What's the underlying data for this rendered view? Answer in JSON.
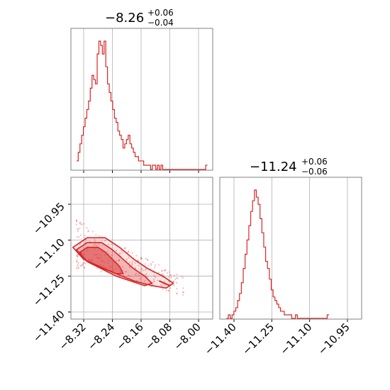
{
  "colors": {
    "accent": "#d62728",
    "grid": "#b0b0b0",
    "frame": "#808080"
  },
  "titles": {
    "p1": {
      "value": "−8.26",
      "upper": "+0.06",
      "lower": "−0.04"
    },
    "p2": {
      "value": "−11.24",
      "upper": "+0.06",
      "lower": "−0.06"
    }
  },
  "chart_data": [
    {
      "type": "histogram",
      "panel": "top-left",
      "parameter_index": 0,
      "xlim": [
        -8.35,
        -7.97
      ],
      "x_ticks": [
        -8.32,
        -8.24,
        -8.16,
        -8.08,
        -8.0
      ],
      "grid": true,
      "bin_edges_start": -8.34,
      "bin_width": 0.0048,
      "counts": [
        2,
        4,
        6,
        8,
        10,
        12,
        14,
        16,
        19,
        22,
        21,
        20,
        27,
        30,
        29,
        27,
        30,
        24,
        20,
        18,
        16,
        14,
        12,
        11,
        9,
        8,
        7,
        5,
        6,
        7,
        8,
        6,
        5,
        4,
        3,
        3,
        2,
        2,
        2,
        1,
        1,
        1,
        1,
        0,
        1,
        1,
        0,
        1,
        0,
        1,
        0,
        0,
        0,
        0,
        0,
        0,
        0,
        0,
        0,
        0,
        0,
        0,
        0,
        0,
        0,
        0,
        0,
        0,
        0,
        0,
        0,
        0,
        0,
        0,
        0,
        1
      ]
    },
    {
      "type": "histogram",
      "panel": "bottom-right",
      "parameter_index": 1,
      "xlim": [
        -11.45,
        -10.87
      ],
      "x_ticks": [
        -11.4,
        -11.25,
        -11.1,
        -10.95
      ],
      "grid": true,
      "bin_edges_start": -11.43,
      "bin_width": 0.0074,
      "counts": [
        0,
        1,
        0,
        1,
        2,
        3,
        5,
        7,
        10,
        14,
        18,
        22,
        26,
        30,
        33,
        36,
        34,
        32,
        28,
        24,
        20,
        16,
        14,
        11,
        8,
        6,
        5,
        4,
        3,
        2,
        2,
        1,
        1,
        1,
        1,
        0,
        0,
        1,
        0,
        0,
        0,
        0,
        0,
        0,
        0,
        0,
        0,
        0,
        0,
        0,
        0,
        0,
        0,
        0,
        1
      ]
    },
    {
      "type": "scatter",
      "panel": "bottom-left",
      "description_role": "2D joint posterior with contours",
      "xlim": [
        -8.35,
        -7.97
      ],
      "ylim": [
        -11.43,
        -10.87
      ],
      "x_ticks": [
        -8.32,
        -8.24,
        -8.16,
        -8.08,
        -8.0
      ],
      "y_ticks": [
        -10.95,
        -11.1,
        -11.25,
        -11.4
      ],
      "grid": true,
      "contours": [
        {
          "level": 0.39,
          "x": [
            -8.33,
            -8.31,
            -8.28,
            -8.26,
            -8.24,
            -8.22,
            -8.21,
            -8.23,
            -8.26,
            -8.29,
            -8.32,
            -8.33
          ],
          "y": [
            -11.15,
            -11.13,
            -11.13,
            -11.15,
            -11.18,
            -11.21,
            -11.24,
            -11.24,
            -11.22,
            -11.2,
            -11.18,
            -11.15
          ]
        },
        {
          "level": 0.86,
          "x": [
            -8.34,
            -8.31,
            -8.27,
            -8.24,
            -8.21,
            -8.18,
            -8.15,
            -8.13,
            -8.15,
            -8.19,
            -8.23,
            -8.27,
            -8.31,
            -8.34
          ],
          "y": [
            -11.14,
            -11.11,
            -11.11,
            -11.14,
            -11.18,
            -11.22,
            -11.25,
            -11.28,
            -11.29,
            -11.27,
            -11.25,
            -11.22,
            -11.19,
            -11.14
          ]
        },
        {
          "level": 0.99,
          "x": [
            -8.35,
            -8.31,
            -8.26,
            -8.22,
            -8.18,
            -8.14,
            -8.1,
            -8.07,
            -8.09,
            -8.13,
            -8.18,
            -8.23,
            -8.28,
            -8.32,
            -8.35
          ],
          "y": [
            -11.13,
            -11.09,
            -11.09,
            -11.13,
            -11.18,
            -11.22,
            -11.25,
            -11.28,
            -11.3,
            -11.29,
            -11.27,
            -11.24,
            -11.21,
            -11.18,
            -11.13
          ]
        }
      ]
    }
  ]
}
